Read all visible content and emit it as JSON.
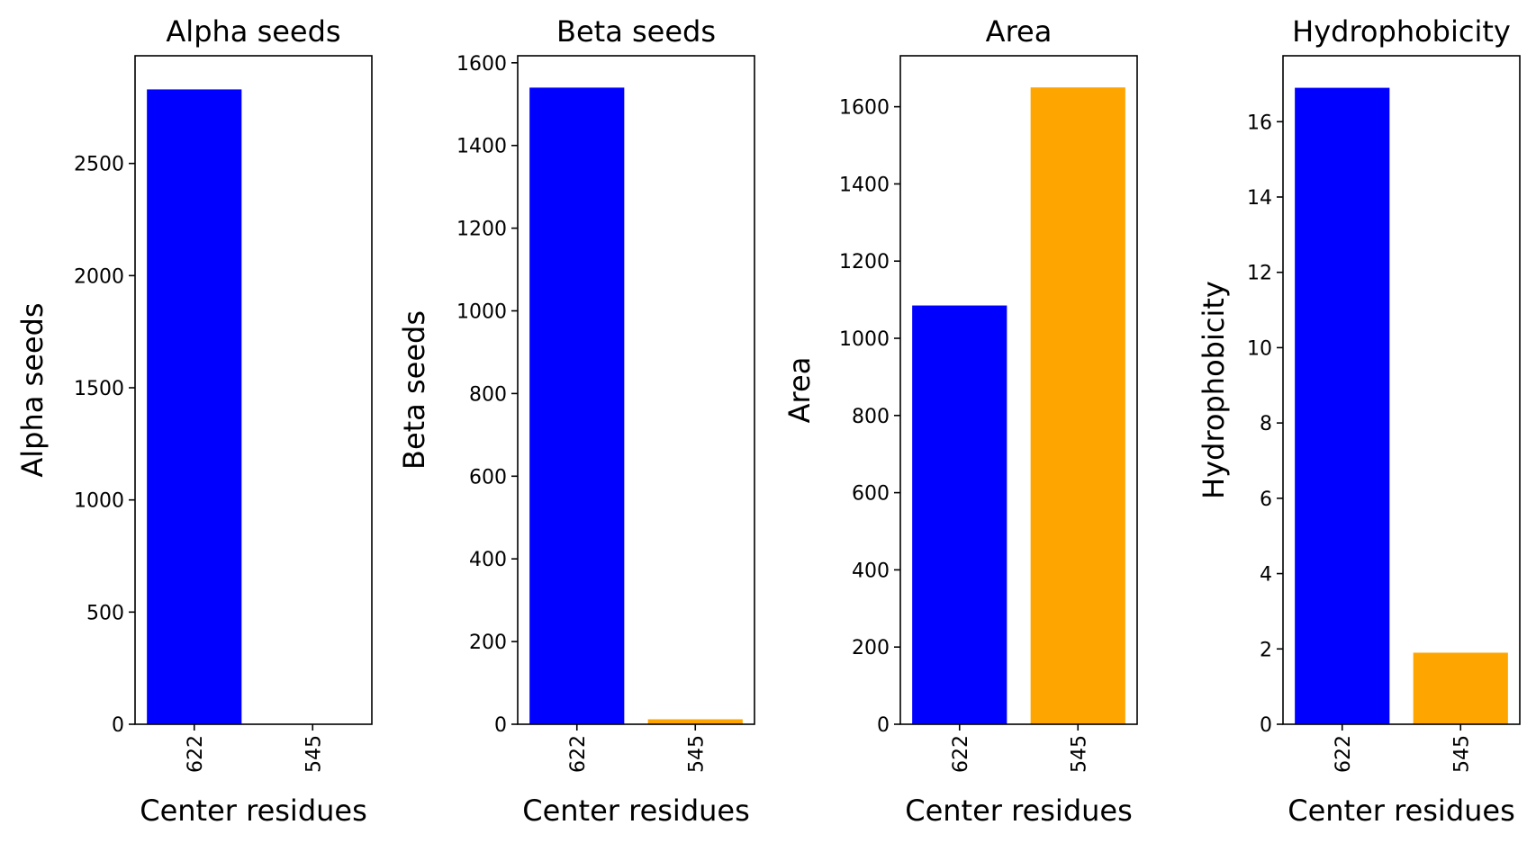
{
  "chart_data": [
    {
      "type": "bar",
      "title": "Alpha seeds",
      "xlabel": "Center residues",
      "ylabel": "Alpha seeds",
      "categories": [
        "622",
        "545"
      ],
      "values": [
        2830,
        0
      ],
      "colors": [
        "#0000ff",
        "#ffa500"
      ],
      "ylim": [
        0,
        2980
      ],
      "yticks": [
        0,
        500,
        1000,
        1500,
        2000,
        2500
      ]
    },
    {
      "type": "bar",
      "title": "Beta seeds",
      "xlabel": "Center residues",
      "ylabel": "Beta seeds",
      "categories": [
        "622",
        "545"
      ],
      "values": [
        1540,
        12
      ],
      "colors": [
        "#0000ff",
        "#ffa500"
      ],
      "ylim": [
        0,
        1617
      ],
      "yticks": [
        0,
        200,
        400,
        600,
        800,
        1000,
        1200,
        1400,
        1600
      ]
    },
    {
      "type": "bar",
      "title": "Area",
      "xlabel": "Center residues",
      "ylabel": "Area",
      "categories": [
        "622",
        "545"
      ],
      "values": [
        1085,
        1650
      ],
      "colors": [
        "#0000ff",
        "#ffa500"
      ],
      "ylim": [
        0,
        1732
      ],
      "yticks": [
        0,
        200,
        400,
        600,
        800,
        1000,
        1200,
        1400,
        1600
      ]
    },
    {
      "type": "bar",
      "title": "Hydrophobicity",
      "xlabel": "Center residues",
      "ylabel": "Hydrophobicity",
      "categories": [
        "622",
        "545"
      ],
      "values": [
        16.9,
        1.9
      ],
      "colors": [
        "#0000ff",
        "#ffa500"
      ],
      "ylim": [
        0,
        17.75
      ],
      "yticks": [
        0,
        2,
        4,
        6,
        8,
        10,
        12,
        14,
        16
      ]
    }
  ]
}
